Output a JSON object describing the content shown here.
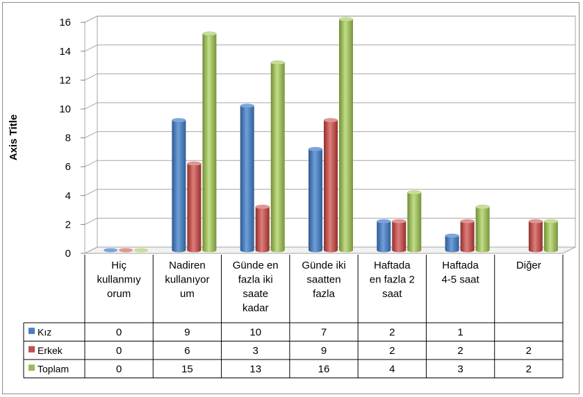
{
  "chart_data": {
    "type": "bar",
    "ylabel": "Axis Title",
    "ylim": [
      0,
      16
    ],
    "yticks": [
      "0",
      "2",
      "4",
      "6",
      "8",
      "10",
      "12",
      "14",
      "16"
    ],
    "categories": [
      [
        "Hiç",
        "kullanmıy",
        "orum"
      ],
      [
        "Nadiren",
        "kullanıyor",
        "um"
      ],
      [
        "Günde en",
        "fazla iki",
        "saate",
        "kadar"
      ],
      [
        "Günde iki",
        "saatten",
        "fazla"
      ],
      [
        "Haftada",
        "en fazla 2",
        "saat"
      ],
      [
        "Haftada",
        "4-5 saat"
      ],
      [
        "Diğer"
      ]
    ],
    "series": [
      {
        "name": "Kız",
        "color": "#4a7ebb",
        "values": [
          0,
          9,
          10,
          7,
          2,
          1,
          null
        ],
        "labels": [
          "0",
          "9",
          "10",
          "7",
          "2",
          "1",
          ""
        ]
      },
      {
        "name": "Erkek",
        "color": "#c0504d",
        "values": [
          0,
          6,
          3,
          9,
          2,
          2,
          2
        ],
        "labels": [
          "0",
          "6",
          "3",
          "9",
          "2",
          "2",
          "2"
        ]
      },
      {
        "name": "Toplam",
        "color": "#9bbb59",
        "values": [
          0,
          15,
          13,
          16,
          4,
          3,
          2
        ],
        "labels": [
          "0",
          "15",
          "13",
          "16",
          "4",
          "3",
          "2"
        ]
      }
    ],
    "grid": true,
    "legend": "data-table"
  }
}
